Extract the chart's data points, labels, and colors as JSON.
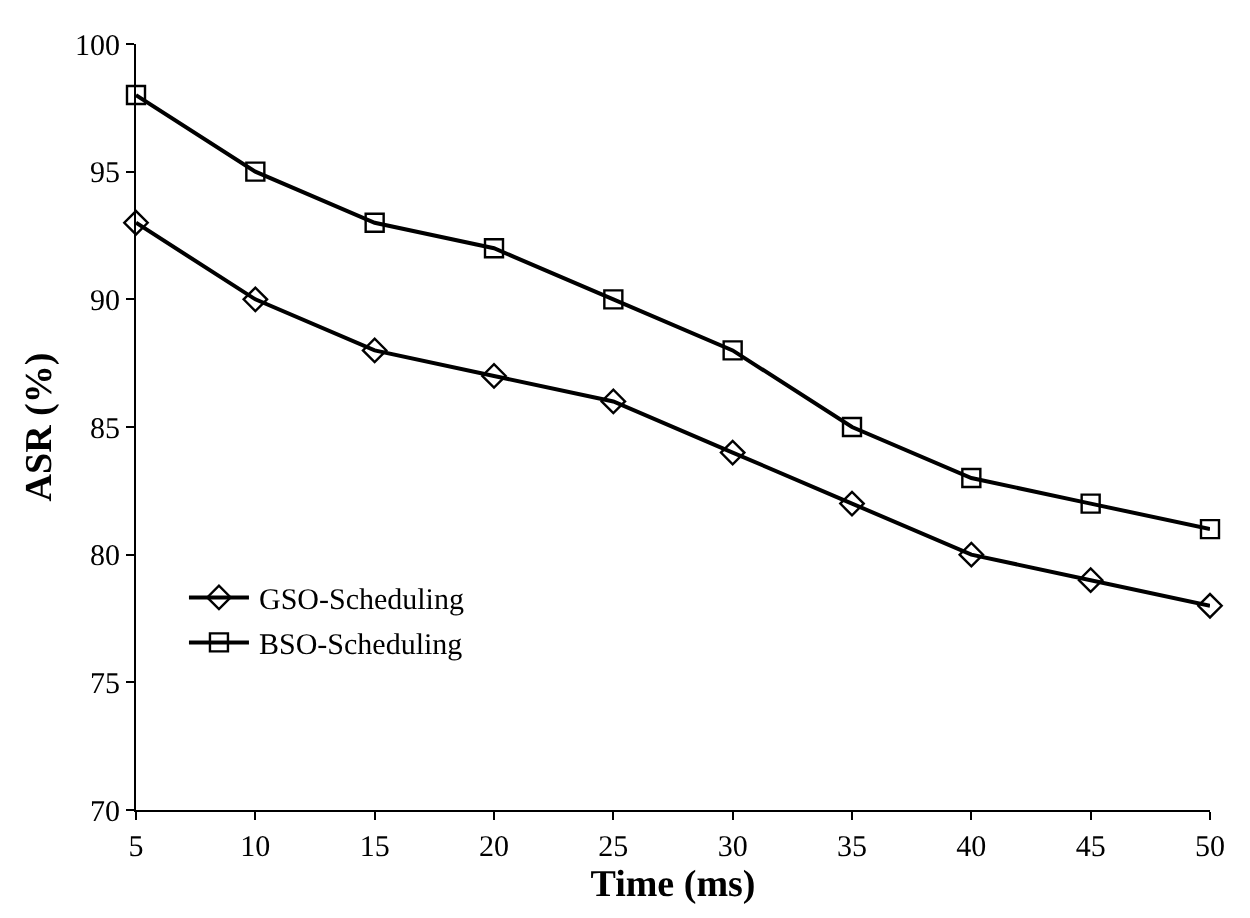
{
  "chart_data": {
    "type": "line",
    "xlabel": "Time (ms)",
    "ylabel": "ASR (%)",
    "x": [
      5,
      10,
      15,
      20,
      25,
      30,
      35,
      40,
      45,
      50
    ],
    "series": [
      {
        "name": "GSO-Scheduling",
        "color": "#000000",
        "marker": "diamond",
        "values": [
          93,
          90,
          88,
          87,
          86,
          84,
          82,
          80,
          79,
          78
        ]
      },
      {
        "name": "BSO-Scheduling",
        "color": "#000000",
        "marker": "square",
        "values": [
          98,
          95,
          93,
          92,
          90,
          88,
          85,
          83,
          82,
          81
        ]
      }
    ],
    "xlim": [
      5,
      50
    ],
    "xticks": [
      5,
      10,
      15,
      20,
      25,
      30,
      35,
      40,
      45,
      50
    ],
    "ylim": [
      70,
      100
    ],
    "yticks": [
      70,
      75,
      80,
      85,
      90,
      95,
      100
    ],
    "legend": "bottom left",
    "line_style": "solid"
  }
}
